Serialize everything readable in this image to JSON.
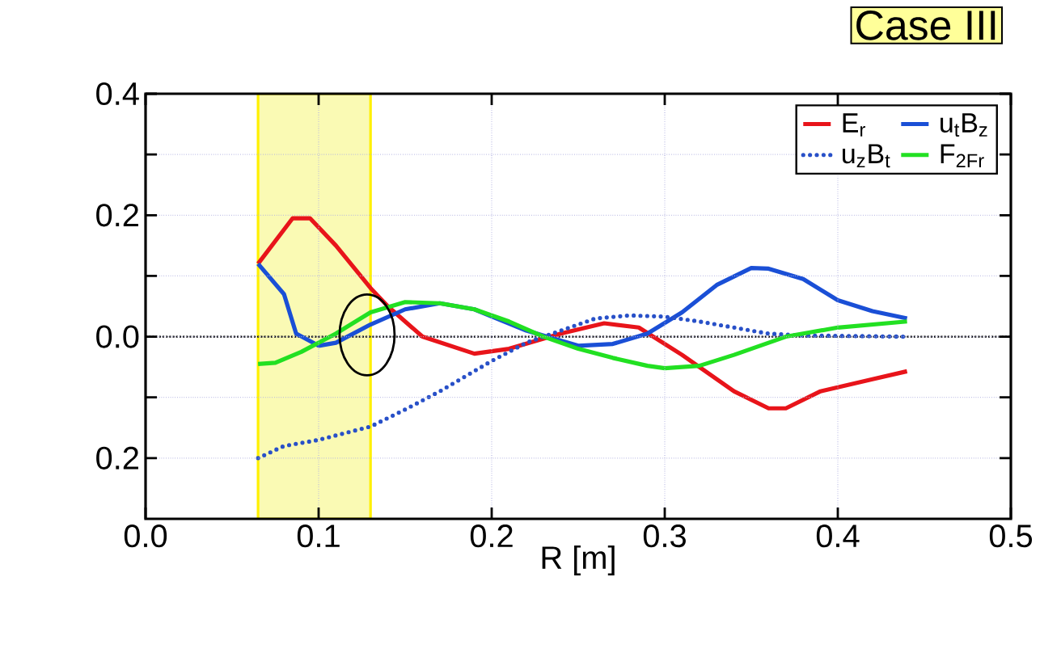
{
  "chart_data": {
    "type": "line",
    "title": "Case III",
    "xlabel": "R [m]",
    "xlim": [
      0,
      0.5
    ],
    "ylim": [
      -0.3,
      0.4
    ],
    "xticks": [
      {
        "value": 0,
        "label": "0.0"
      },
      {
        "value": 0.1,
        "label": "0.1"
      },
      {
        "value": 0.2,
        "label": "0.2"
      },
      {
        "value": 0.3,
        "label": "0.3"
      },
      {
        "value": 0.4,
        "label": "0.4"
      },
      {
        "value": 0.5,
        "label": "0.5"
      }
    ],
    "yticks": [
      {
        "value": -0.2,
        "label": "0.2"
      },
      {
        "value": -0.1,
        "label": null
      },
      {
        "value": 0,
        "label": "0.0"
      },
      {
        "value": 0.1,
        "label": null
      },
      {
        "value": 0.2,
        "label": "0.2"
      },
      {
        "value": 0.3,
        "label": null
      },
      {
        "value": 0.4,
        "label": "0.4"
      }
    ],
    "grid": true,
    "legend": "top right",
    "bands": [
      {
        "axis": "x",
        "from": 0.065,
        "to": 0.13,
        "color": "#fafab4"
      }
    ],
    "ref_lines": [
      {
        "axis": "y",
        "value": 0,
        "color": "#000000",
        "line_style": "dotted"
      }
    ],
    "series": [
      {
        "name": "E$_{r}$",
        "color": "#e8141a",
        "line_style": "solid",
        "x": [
          0.065,
          0.085,
          0.095,
          0.11,
          0.13,
          0.14,
          0.16,
          0.19,
          0.21,
          0.24,
          0.265,
          0.285,
          0.31,
          0.34,
          0.36,
          0.37,
          0.39,
          0.42,
          0.44
        ],
        "values": [
          0.12,
          0.195,
          0.195,
          0.15,
          0.08,
          0.05,
          0.0,
          -0.028,
          -0.02,
          0.005,
          0.022,
          0.015,
          -0.03,
          -0.09,
          -0.118,
          -0.118,
          -0.09,
          -0.07,
          -0.057
        ]
      },
      {
        "name": "u$_{t}$B$_{z}$",
        "color": "#1a4fd6",
        "line_style": "solid",
        "x": [
          0.065,
          0.08,
          0.087,
          0.1,
          0.11,
          0.13,
          0.15,
          0.17,
          0.19,
          0.22,
          0.25,
          0.27,
          0.29,
          0.31,
          0.33,
          0.35,
          0.36,
          0.38,
          0.4,
          0.42,
          0.44
        ],
        "values": [
          0.12,
          0.07,
          0.005,
          -0.015,
          -0.01,
          0.02,
          0.045,
          0.055,
          0.045,
          0.01,
          -0.015,
          -0.012,
          0.005,
          0.04,
          0.085,
          0.113,
          0.112,
          0.095,
          0.06,
          0.042,
          0.03
        ]
      },
      {
        "name": "u$_{z}$B$_{t}$",
        "color": "#2850c8",
        "line_style": "dotted",
        "x": [
          0.065,
          0.08,
          0.1,
          0.13,
          0.15,
          0.17,
          0.2,
          0.22,
          0.24,
          0.26,
          0.28,
          0.3,
          0.32,
          0.34,
          0.36,
          0.38,
          0.44
        ],
        "values": [
          -0.2,
          -0.18,
          -0.17,
          -0.148,
          -0.12,
          -0.09,
          -0.04,
          -0.01,
          0.01,
          0.03,
          0.035,
          0.033,
          0.025,
          0.015,
          0.005,
          0.002,
          0.0
        ]
      },
      {
        "name": "F$_{2Fr}$",
        "color": "#22e022",
        "line_style": "solid",
        "x": [
          0.065,
          0.075,
          0.09,
          0.11,
          0.13,
          0.15,
          0.17,
          0.19,
          0.21,
          0.23,
          0.25,
          0.27,
          0.29,
          0.3,
          0.32,
          0.34,
          0.37,
          0.4,
          0.44
        ],
        "values": [
          -0.045,
          -0.043,
          -0.025,
          0.005,
          0.04,
          0.057,
          0.055,
          0.045,
          0.025,
          0.0,
          -0.02,
          -0.035,
          -0.048,
          -0.052,
          -0.048,
          -0.03,
          0.0,
          0.015,
          0.025
        ]
      }
    ]
  }
}
